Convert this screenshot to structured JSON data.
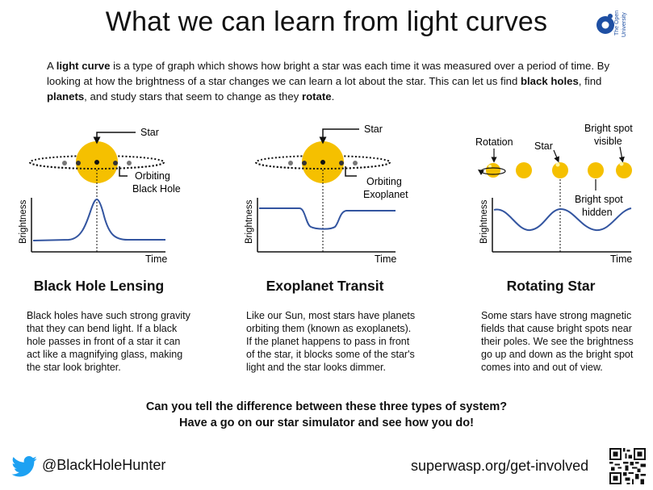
{
  "title": "What we can learn from light curves",
  "logo": {
    "line1": "The Open",
    "line2": "University"
  },
  "intro": {
    "t1": "A ",
    "b1": "light curve",
    "t2": " is a type of graph which shows how bright a star was each time it was measured over a period of time. By looking at how the brightness of a star changes we can learn a lot about the star. This can let us find ",
    "b2": "black holes",
    "t3": ", find ",
    "b3": "planets",
    "t4": ", and study stars that seem to change as they ",
    "b4": "rotate",
    "t5": "."
  },
  "panels": [
    {
      "heading": "Black Hole Lensing",
      "star_label": "Star",
      "orbit_label_1": "Orbiting",
      "orbit_label_2": "Black Hole",
      "y_axis": "Brightness",
      "x_axis": "Time",
      "description": [
        "Black holes have such strong gravity",
        "that they can bend light. If a black",
        "hole passes in front of a star it can",
        "act like a magnifying glass, making",
        "the star look brighter."
      ]
    },
    {
      "heading": "Exoplanet Transit",
      "star_label": "Star",
      "orbit_label_1": "Orbiting",
      "orbit_label_2": "Exoplanet",
      "y_axis": "Brightness",
      "x_axis": "Time",
      "description": [
        "Like our Sun, most stars have planets",
        "orbiting them (known as exoplanets).",
        "If the planet happens to pass in front",
        "of the star, it blocks some of the star's",
        "light and the star looks dimmer."
      ]
    },
    {
      "heading": "Rotating Star",
      "rotation_label": "Rotation",
      "star_label": "Star",
      "visible_label_1": "Bright spot",
      "visible_label_2": "visible",
      "hidden_label_1": "Bright spot",
      "hidden_label_2": "hidden",
      "y_axis": "Brightness",
      "x_axis": "Time",
      "description": [
        "Some stars have strong magnetic",
        "fields that cause bright spots near",
        "their poles. We see the brightness",
        "go up and down as the bright spot",
        "comes into and out of view."
      ]
    }
  ],
  "question_line1": "Can you tell the difference between these three types of system?",
  "question_line2": "Have a go on our star simulator and see how you do!",
  "twitter": "@BlackHoleHunter",
  "website": "superwasp.org/get-involved",
  "colors": {
    "star": "#f5c000",
    "curve": "#3355a0",
    "twitter": "#1da1f2",
    "logo": "#1e4fa3"
  }
}
